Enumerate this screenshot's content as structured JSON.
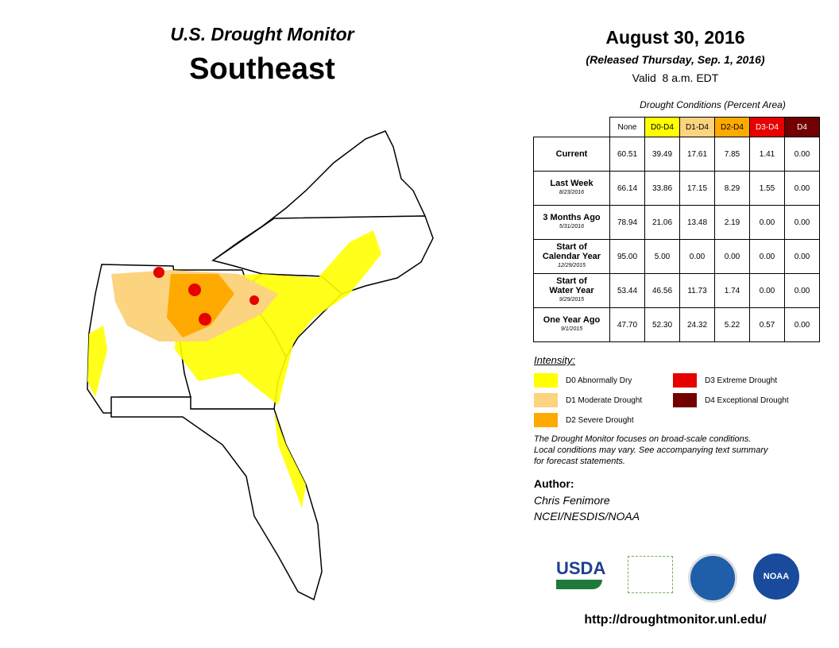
{
  "header": {
    "title": "U.S. Drought Monitor",
    "region": "Southeast",
    "date": "August 30, 2016",
    "released": "(Released Thursday, Sep. 1, 2016)",
    "valid": "Valid  8 a.m. EDT"
  },
  "table": {
    "caption": "Drought Conditions (Percent Area)",
    "columns": [
      {
        "label": "None",
        "color": "#ffffff",
        "text": "#000000"
      },
      {
        "label": "D0-D4",
        "color": "#ffff00",
        "text": "#000000"
      },
      {
        "label": "D1-D4",
        "color": "#fcd37f",
        "text": "#000000"
      },
      {
        "label": "D2-D4",
        "color": "#ffaa00",
        "text": "#000000"
      },
      {
        "label": "D3-D4",
        "color": "#e60000",
        "text": "#ffffff"
      },
      {
        "label": "D4",
        "color": "#730000",
        "text": "#ffffff"
      }
    ],
    "rows": [
      {
        "label": [
          "Current"
        ],
        "values": [
          "60.51",
          "39.49",
          "17.61",
          "7.85",
          "1.41",
          "0.00"
        ]
      },
      {
        "label": [
          "Last Week"
        ],
        "date": "8/23/2016",
        "values": [
          "66.14",
          "33.86",
          "17.15",
          "8.29",
          "1.55",
          "0.00"
        ]
      },
      {
        "label": [
          "3 Months Ago"
        ],
        "date": "5/31/2016",
        "values": [
          "78.94",
          "21.06",
          "13.48",
          "2.19",
          "0.00",
          "0.00"
        ]
      },
      {
        "label": [
          "Start of",
          "Calendar Year"
        ],
        "date": "12/29/2015",
        "values": [
          "95.00",
          "5.00",
          "0.00",
          "0.00",
          "0.00",
          "0.00"
        ]
      },
      {
        "label": [
          "Start of",
          "Water Year"
        ],
        "date": "9/29/2015",
        "values": [
          "53.44",
          "46.56",
          "11.73",
          "1.74",
          "0.00",
          "0.00"
        ]
      },
      {
        "label": [
          "One Year Ago"
        ],
        "date": "9/1/2015",
        "values": [
          "47.70",
          "52.30",
          "24.32",
          "5.22",
          "0.57",
          "0.00"
        ]
      }
    ]
  },
  "legend": {
    "title": "Intensity:",
    "items": [
      {
        "label": "D0 Abnormally Dry",
        "color": "#ffff00"
      },
      {
        "label": "D1 Moderate Drought",
        "color": "#fcd37f"
      },
      {
        "label": "D2 Severe Drought",
        "color": "#ffaa00"
      },
      {
        "label": "D3 Extreme Drought",
        "color": "#e60000"
      },
      {
        "label": "D4 Exceptional Drought",
        "color": "#730000"
      }
    ]
  },
  "note": [
    "The Drought Monitor focuses on broad-scale conditions.",
    "Local conditions may vary. See accompanying text summary",
    "for forecast statements."
  ],
  "author": {
    "label": "Author:",
    "lines": [
      "Chris Fenimore",
      "NCEI/NESDIS/NOAA"
    ]
  },
  "logos": [
    "USDA",
    "NOAA"
  ],
  "url": "http://droughtmonitor.unl.edu/"
}
